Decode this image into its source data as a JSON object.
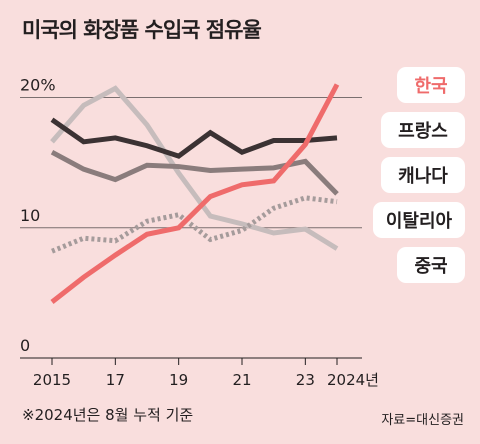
{
  "title": "미국의 화장품 수입국 점유율",
  "note": "※2024년은 8월 누적 기준",
  "source": "자료=대신증권",
  "chart_data": {
    "type": "line",
    "y_ticks": [
      {
        "value": 0,
        "label": "0"
      },
      {
        "value": 10,
        "label": "10"
      },
      {
        "value": 20,
        "label": "20%"
      }
    ],
    "x_ticks": [
      {
        "value": 2015,
        "label": "2015"
      },
      {
        "value": 2017,
        "label": "17"
      },
      {
        "value": 2019,
        "label": "19"
      },
      {
        "value": 2021,
        "label": "21"
      },
      {
        "value": 2023,
        "label": "23"
      },
      {
        "value": 2024,
        "label": "2024년"
      }
    ],
    "ylim": [
      0,
      21.5
    ],
    "xlim": [
      2014.8,
      2024.3
    ],
    "x": [
      2015,
      2016,
      2017,
      2018,
      2019,
      2020,
      2021,
      2022,
      2023,
      2024
    ],
    "series": [
      {
        "name": "한국",
        "color": "#ef6b6b",
        "style": "solid",
        "highlight": true,
        "values": [
          4.3,
          6.2,
          7.9,
          9.5,
          10.0,
          12.4,
          13.3,
          13.6,
          16.4,
          21.0
        ]
      },
      {
        "name": "프랑스",
        "color": "#3b3233",
        "style": "solid",
        "values": [
          18.3,
          16.6,
          16.9,
          16.3,
          15.5,
          17.3,
          15.8,
          16.7,
          16.7,
          16.9
        ]
      },
      {
        "name": "캐나다",
        "color": "#8a7c7c",
        "style": "solid",
        "values": [
          15.8,
          14.5,
          13.7,
          14.8,
          14.7,
          14.4,
          14.5,
          14.6,
          15.1,
          12.6
        ]
      },
      {
        "name": "이탈리아",
        "color": "#a59b9b",
        "style": "dotted",
        "values": [
          8.2,
          9.2,
          9.0,
          10.5,
          11.0,
          9.1,
          9.8,
          11.5,
          12.3,
          12.0
        ]
      },
      {
        "name": "중국",
        "color": "#c6bcbc",
        "style": "solid",
        "values": [
          16.6,
          19.4,
          20.7,
          17.9,
          14.2,
          10.9,
          10.3,
          9.6,
          9.9,
          8.4
        ]
      }
    ],
    "grid": true
  }
}
